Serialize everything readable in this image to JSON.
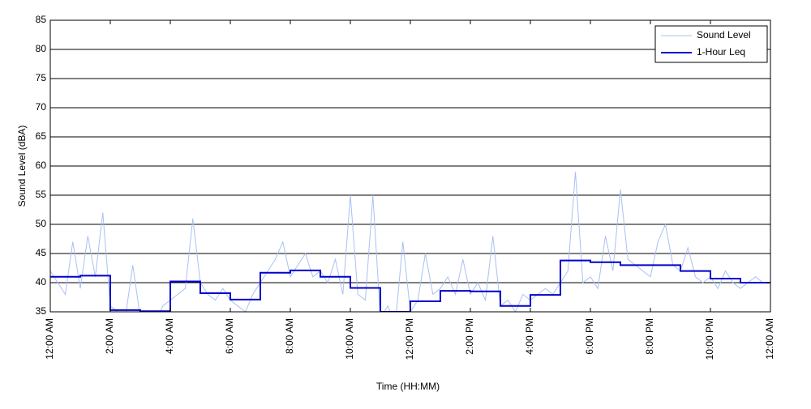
{
  "chart_data": {
    "type": "line",
    "xlabel": "Time (HH:MM)",
    "ylabel": "Sound Level (dBA)",
    "xlim": [
      0,
      24
    ],
    "xticks": [
      {
        "value": 0,
        "label": "12:00 AM"
      },
      {
        "value": 2,
        "label": "2:00 AM"
      },
      {
        "value": 4,
        "label": "4:00 AM"
      },
      {
        "value": 6,
        "label": "6:00 AM"
      },
      {
        "value": 8,
        "label": "8:00 AM"
      },
      {
        "value": 10,
        "label": "10:00 AM"
      },
      {
        "value": 12,
        "label": "12:00 PM"
      },
      {
        "value": 14,
        "label": "2:00 PM"
      },
      {
        "value": 16,
        "label": "4:00 PM"
      },
      {
        "value": 18,
        "label": "6:00 PM"
      },
      {
        "value": 20,
        "label": "8:00 PM"
      },
      {
        "value": 22,
        "label": "10:00 PM"
      },
      {
        "value": 24,
        "label": "12:00 AM"
      }
    ],
    "ylim": [
      35,
      85
    ],
    "yticks": [
      35,
      40,
      45,
      50,
      55,
      60,
      65,
      70,
      75,
      80,
      85
    ],
    "grid": "y",
    "legend": "upper right",
    "series": [
      {
        "name": "Sound Level",
        "color": "#a9c1f2",
        "width": 1,
        "drawstyle": "default",
        "x": [
          0,
          0.25,
          0.5,
          0.75,
          1,
          1.25,
          1.5,
          1.75,
          2,
          2.25,
          2.5,
          2.75,
          3,
          3.25,
          3.5,
          3.75,
          4,
          4.25,
          4.5,
          4.75,
          5,
          5.25,
          5.5,
          5.75,
          6,
          6.25,
          6.5,
          6.75,
          7,
          7.25,
          7.5,
          7.75,
          8,
          8.25,
          8.5,
          8.75,
          9,
          9.25,
          9.5,
          9.75,
          10,
          10.25,
          10.5,
          10.75,
          11,
          11.25,
          11.5,
          11.75,
          12,
          12.25,
          12.5,
          12.75,
          13,
          13.25,
          13.5,
          13.75,
          14,
          14.25,
          14.5,
          14.75,
          15,
          15.25,
          15.5,
          15.75,
          16,
          16.25,
          16.5,
          16.75,
          17,
          17.25,
          17.5,
          17.75,
          18,
          18.25,
          18.5,
          18.75,
          19,
          19.25,
          19.5,
          19.75,
          20,
          20.25,
          20.5,
          20.75,
          21,
          21.25,
          21.5,
          21.75,
          22,
          22.25,
          22.5,
          22.75,
          23,
          23.25,
          23.5,
          23.75,
          24
        ],
        "values": [
          42,
          40,
          38,
          47,
          39,
          48,
          41,
          52,
          36,
          35,
          34,
          43,
          34,
          35,
          33,
          36,
          37,
          38,
          39,
          51,
          40,
          38,
          37,
          39,
          37,
          36,
          35,
          38,
          40,
          42,
          44,
          47,
          41,
          43,
          45,
          41,
          42,
          40,
          44,
          38,
          55,
          38,
          37,
          55,
          34,
          36,
          33,
          47,
          35,
          37,
          45,
          38,
          39,
          41,
          38,
          44,
          38,
          40,
          37,
          48,
          36,
          37,
          35,
          38,
          37,
          38,
          39,
          38,
          40,
          42,
          59,
          40,
          41,
          39,
          48,
          42,
          56,
          44,
          43,
          42,
          41,
          47,
          50,
          43,
          42,
          46,
          41,
          40,
          41,
          39,
          42,
          40,
          39,
          40,
          41,
          40,
          40
        ]
      },
      {
        "name": "1-Hour Leq",
        "color": "#0000cc",
        "width": 2,
        "drawstyle": "steps-post",
        "x": [
          0,
          1,
          2,
          3,
          4,
          5,
          6,
          7,
          8,
          9,
          10,
          11,
          12,
          13,
          14,
          15,
          16,
          17,
          18,
          19,
          20,
          21,
          22,
          23
        ],
        "values": [
          41,
          41.2,
          35.3,
          35.1,
          40.2,
          38.2,
          37.1,
          41.7,
          42.1,
          41,
          39.1,
          35,
          36.8,
          38.6,
          38.5,
          36,
          37.9,
          43.8,
          43.5,
          43,
          43,
          42,
          40.7,
          40
        ]
      }
    ]
  }
}
